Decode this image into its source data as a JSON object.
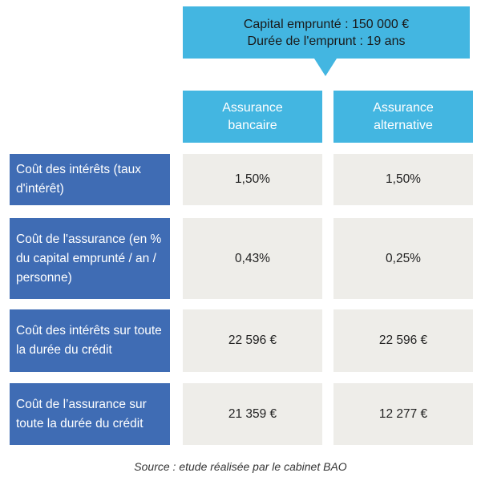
{
  "header": {
    "line1": "Capital emprunté : 150 000 €",
    "line2": "Durée de l'emprunt : 19 ans"
  },
  "columns": [
    {
      "line1": "Assurance",
      "line2": "bancaire"
    },
    {
      "line1": "Assurance",
      "line2": "alternative"
    }
  ],
  "rows": [
    {
      "label": "Coût des intérêts (taux d'intérêt)",
      "values": [
        "1,50%",
        "1,50%"
      ]
    },
    {
      "label": "Coût de l'assurance (en % du capital emprunté / an / personne)",
      "values": [
        "0,43%",
        "0,25%"
      ]
    },
    {
      "label": "Coût des intérêts sur toute la durée du crédit",
      "values": [
        "22 596 €",
        "22 596 €"
      ]
    },
    {
      "label": "Coût de l’assurance sur toute la durée du crédit",
      "values": [
        "21 359 €",
        "12 277 €"
      ]
    }
  ],
  "source": "Source : etude réalisée par le cabinet BAO",
  "colors": {
    "header_blue": "#43b6e1",
    "label_blue": "#3f6cb4",
    "cell_grey": "#eeede9"
  }
}
